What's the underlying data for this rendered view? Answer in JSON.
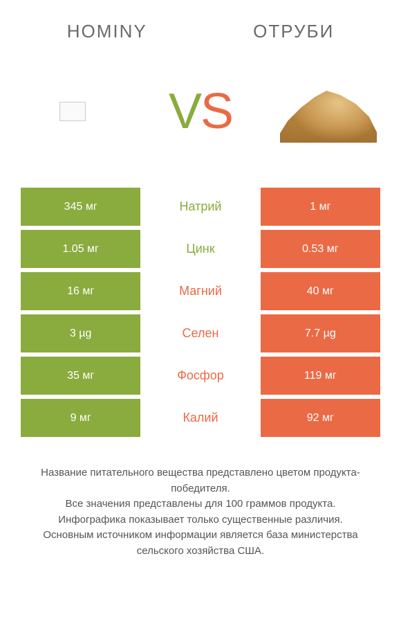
{
  "header": {
    "left_title": "HOMINY",
    "right_title": "ОТРУБИ"
  },
  "vs": {
    "v": "V",
    "s": "S"
  },
  "colors": {
    "left": "#8aab3e",
    "right": "#ea6a45",
    "bg": "#ffffff",
    "text": "#555555"
  },
  "rows": [
    {
      "nutrient": "Натрий",
      "left": "345 мг",
      "right": "1 мг",
      "winner": "left"
    },
    {
      "nutrient": "Цинк",
      "left": "1.05 мг",
      "right": "0.53 мг",
      "winner": "left"
    },
    {
      "nutrient": "Магний",
      "left": "16 мг",
      "right": "40 мг",
      "winner": "right"
    },
    {
      "nutrient": "Селен",
      "left": "3 µg",
      "right": "7.7 µg",
      "winner": "right"
    },
    {
      "nutrient": "Фосфор",
      "left": "35 мг",
      "right": "119 мг",
      "winner": "right"
    },
    {
      "nutrient": "Калий",
      "left": "9 мг",
      "right": "92 мг",
      "winner": "right"
    }
  ],
  "footer": {
    "line1": "Название питательного вещества представлено цветом продукта-победителя.",
    "line2": "Все значения представлены для 100 граммов продукта.",
    "line3": "Инфографика показывает только существенные различия.",
    "line4": "Основным источником информации является база министерства сельского хозяйства США."
  }
}
